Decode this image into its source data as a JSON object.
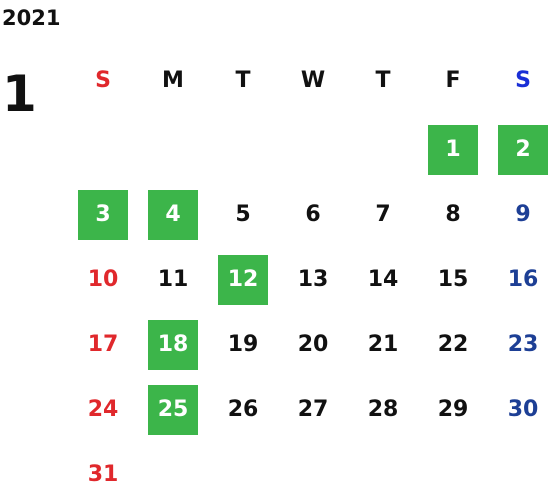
{
  "year": "2021",
  "month": "1",
  "colors": {
    "sunday": "#e0282c",
    "saturday_header": "#1a2fd6",
    "saturday": "#1d3f95",
    "weekday": "#111111",
    "highlight_bg": "#3cb54a",
    "highlight_text": "#ffffff"
  },
  "weekdays": [
    "S",
    "M",
    "T",
    "W",
    "T",
    "F",
    "S"
  ],
  "weeks": [
    [
      null,
      null,
      null,
      null,
      null,
      {
        "d": "1",
        "hl": true
      },
      {
        "d": "2",
        "hl": true
      }
    ],
    [
      {
        "d": "3",
        "hl": true
      },
      {
        "d": "4",
        "hl": true
      },
      {
        "d": "5"
      },
      {
        "d": "6"
      },
      {
        "d": "7"
      },
      {
        "d": "8"
      },
      {
        "d": "9"
      }
    ],
    [
      {
        "d": "10"
      },
      {
        "d": "11"
      },
      {
        "d": "12",
        "hl": true
      },
      {
        "d": "13"
      },
      {
        "d": "14"
      },
      {
        "d": "15"
      },
      {
        "d": "16"
      }
    ],
    [
      {
        "d": "17"
      },
      {
        "d": "18",
        "hl": true
      },
      {
        "d": "19"
      },
      {
        "d": "20"
      },
      {
        "d": "21"
      },
      {
        "d": "22"
      },
      {
        "d": "23"
      }
    ],
    [
      {
        "d": "24"
      },
      {
        "d": "25",
        "hl": true
      },
      {
        "d": "26"
      },
      {
        "d": "27"
      },
      {
        "d": "28"
      },
      {
        "d": "29"
      },
      {
        "d": "30"
      }
    ],
    [
      {
        "d": "31"
      },
      null,
      null,
      null,
      null,
      null,
      null
    ]
  ]
}
